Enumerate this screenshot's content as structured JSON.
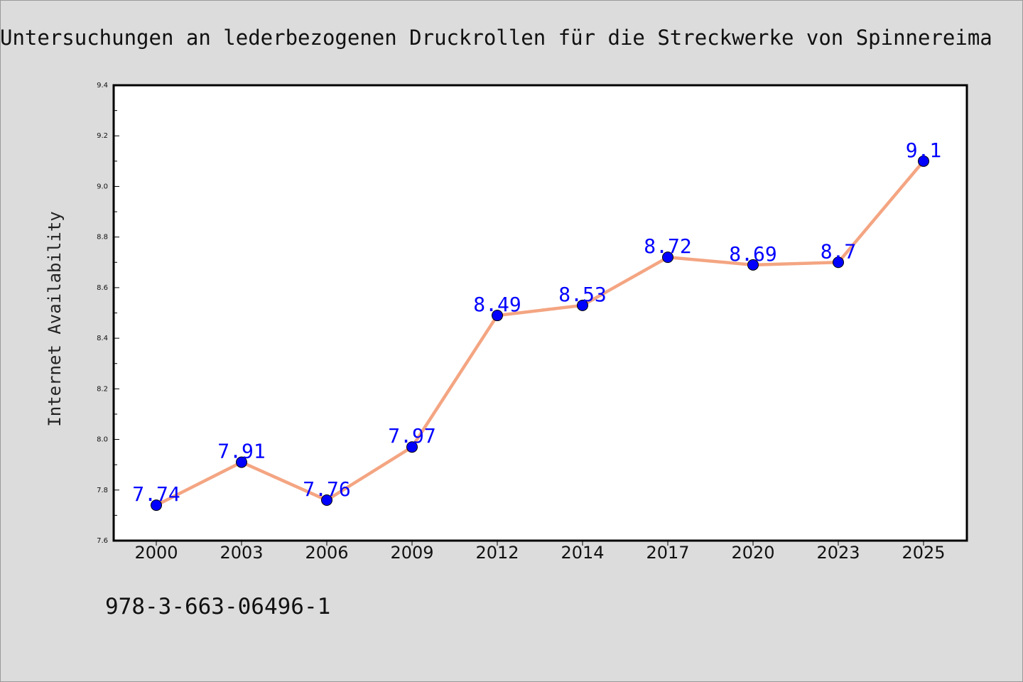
{
  "title": "Untersuchungen an lederbezogenen Druckrollen für die Streckwerke von Spinnereima",
  "footer_text": "978-3-663-06496-1",
  "colors": {
    "background": "#dcdcdc",
    "plot_background": "#ffffff",
    "line": "#f4a582",
    "marker": "#0000ff",
    "data_label": "#0000ff"
  },
  "chart_data": {
    "type": "line",
    "title": "Untersuchungen an lederbezogenen Druckrollen für die Streckwerke von Spinnereima",
    "xlabel": "",
    "ylabel": "Internet Availability",
    "x": [
      "2000",
      "2003",
      "2006",
      "2009",
      "2012",
      "2014",
      "2017",
      "2020",
      "2023",
      "2025"
    ],
    "series": [
      {
        "values": [
          7.74,
          7.91,
          7.76,
          7.97,
          8.49,
          8.53,
          8.72,
          8.69,
          8.7,
          9.1
        ],
        "labels": [
          "7.74",
          "7.91",
          "7.76",
          "7.97",
          "8.49",
          "8.53",
          "8.72",
          "8.69",
          "8.7",
          "9.1"
        ]
      }
    ],
    "ylim": [
      7.6,
      9.4
    ],
    "yticks": [
      "7.6",
      "7.8",
      "8.0",
      "8.2",
      "8.4",
      "8.6",
      "8.8",
      "9.0",
      "9.2",
      "9.4"
    ],
    "grid": false,
    "legend": "none"
  }
}
